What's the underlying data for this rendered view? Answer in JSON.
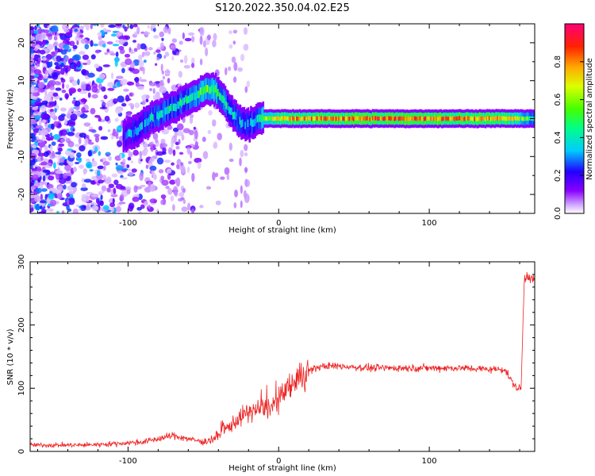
{
  "title": "S120.2022.350.04.02.E25",
  "chart_data": [
    {
      "type": "heatmap",
      "xlabel": "Height of straight line (km)",
      "ylabel": "Frequency (Hz)",
      "xlim": [
        -165,
        170
      ],
      "ylim": [
        -25,
        25
      ],
      "x_ticks": [
        -100,
        0,
        100
      ],
      "y_ticks": [
        -20,
        -10,
        0,
        10,
        20
      ],
      "grid": false,
      "colorbar": {
        "label": "Normalized spectral amplitude",
        "range": [
          0.0,
          1.0
        ],
        "ticks": [
          0.0,
          0.2,
          0.4,
          0.6,
          0.8
        ],
        "tick_labels": [
          "0.0",
          "0.2",
          "0.4",
          "0.6",
          "0.8"
        ],
        "colormap": [
          "#ffffff",
          "#8800ff",
          "#0000ff",
          "#00ffff",
          "#00ff00",
          "#ffff00",
          "#ff7700",
          "#ff0000",
          "#ff0066"
        ]
      },
      "ridge": {
        "x": [
          -103,
          -95,
          -85,
          -75,
          -65,
          -55,
          -48,
          -42,
          -35,
          -30,
          -25,
          -20,
          -15,
          -10,
          0,
          20,
          50,
          100,
          150,
          170
        ],
        "y": [
          -4.5,
          -3.5,
          0,
          2,
          4,
          6,
          8,
          7.5,
          4,
          1,
          -1,
          -1.5,
          -0.5,
          0,
          0,
          0,
          0,
          0,
          0,
          0
        ],
        "amplitude": [
          0.2,
          0.3,
          0.3,
          0.35,
          0.35,
          0.4,
          0.5,
          0.45,
          0.4,
          0.35,
          0.3,
          0.3,
          0.35,
          0.5,
          0.7,
          0.75,
          0.8,
          0.8,
          0.75,
          0.4
        ]
      }
    },
    {
      "type": "line",
      "xlabel": "Height of straight line (km)",
      "ylabel": "SNR (10 * v/v)",
      "xlim": [
        -165,
        170
      ],
      "ylim": [
        0,
        300
      ],
      "x_ticks": [
        -100,
        0,
        100
      ],
      "y_ticks": [
        0,
        100,
        200,
        300
      ],
      "grid": false,
      "color": "#ee2222",
      "series": [
        {
          "x": [
            -165,
            -150,
            -130,
            -110,
            -90,
            -80,
            -70,
            -60,
            -50,
            -45,
            -40,
            -35,
            -30,
            -25,
            -20,
            -15,
            -10,
            -5,
            0,
            5,
            10,
            15,
            20,
            25,
            30,
            40,
            60,
            80,
            100,
            120,
            140,
            150,
            155,
            158,
            160,
            161,
            163,
            165,
            170
          ],
          "y": [
            10,
            10,
            10,
            12,
            15,
            20,
            25,
            20,
            15,
            18,
            25,
            35,
            45,
            55,
            62,
            66,
            68,
            70,
            80,
            95,
            108,
            120,
            128,
            132,
            135,
            135,
            132,
            132,
            132,
            132,
            130,
            130,
            110,
            100,
            100,
            100,
            270,
            280,
            270
          ]
        }
      ]
    }
  ]
}
